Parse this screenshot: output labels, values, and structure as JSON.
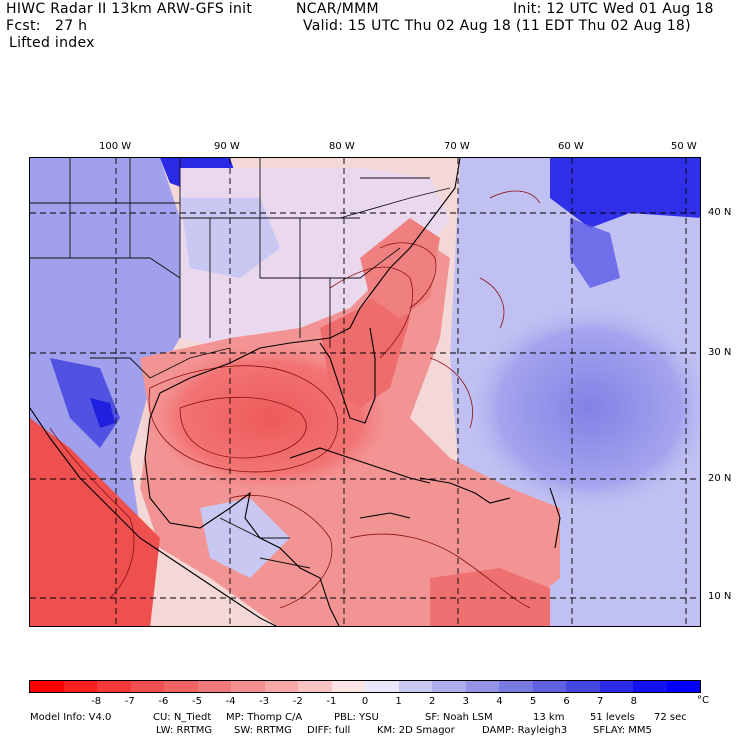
{
  "header": {
    "line1_left": "HIWC Radar II 13km ARW-GFS init",
    "line1_mid": "NCAR/MMM",
    "line1_right": "Init: 12 UTC Wed 01 Aug 18",
    "line2_left": "Fcst:   27 h",
    "line2_right": "Valid: 15 UTC Thu 02 Aug 18 (11 EDT Thu 02 Aug 18)",
    "line3": "Lifted index"
  },
  "longitude_labels": [
    "100 W",
    "90 W",
    "80 W",
    "70 W",
    "60 W",
    "50 W"
  ],
  "latitude_labels": [
    "40 N",
    "30 N",
    "20 N",
    "10 N"
  ],
  "colorbar": {
    "ticks": [
      "-8",
      "-7",
      "-6",
      "-5",
      "-4",
      "-3",
      "-2",
      "-1",
      "0",
      "1",
      "2",
      "3",
      "4",
      "5",
      "6",
      "7",
      "8"
    ],
    "unit": "°C",
    "colors": [
      "#ff0000",
      "#ff1e1e",
      "#f53838",
      "#f05050",
      "#f06464",
      "#f07a7a",
      "#f59090",
      "#f7a8a8",
      "#fac4c4",
      "#fde4e4",
      "#e8e8fa",
      "#c8c8f2",
      "#aeaeec",
      "#9494e6",
      "#7a7ae3",
      "#6060e0",
      "#4646e0",
      "#2c2ce6",
      "#1212ee",
      "#0000ff"
    ]
  },
  "footer": {
    "model_info": "Model Info: V4.0",
    "cu": "CU: N_Tiedt",
    "mp": "MP: Thomp C/A",
    "pbl": "PBL: YSU",
    "sf": "SF: Noah LSM",
    "res": "13 km",
    "levels": "51 levels",
    "dt": "72 sec",
    "lw": "LW: RRTMG",
    "sw": "SW: RRTMG",
    "diff": "DIFF: full",
    "km": "KM: 2D Smagor",
    "damp": "DAMP: Rayleigh3",
    "sflay": "SFLAY: MM5"
  },
  "map": {
    "field": "lifted index",
    "land_colors": {
      "warm": "#f06a6a",
      "cool": "#9a9ae8"
    }
  }
}
